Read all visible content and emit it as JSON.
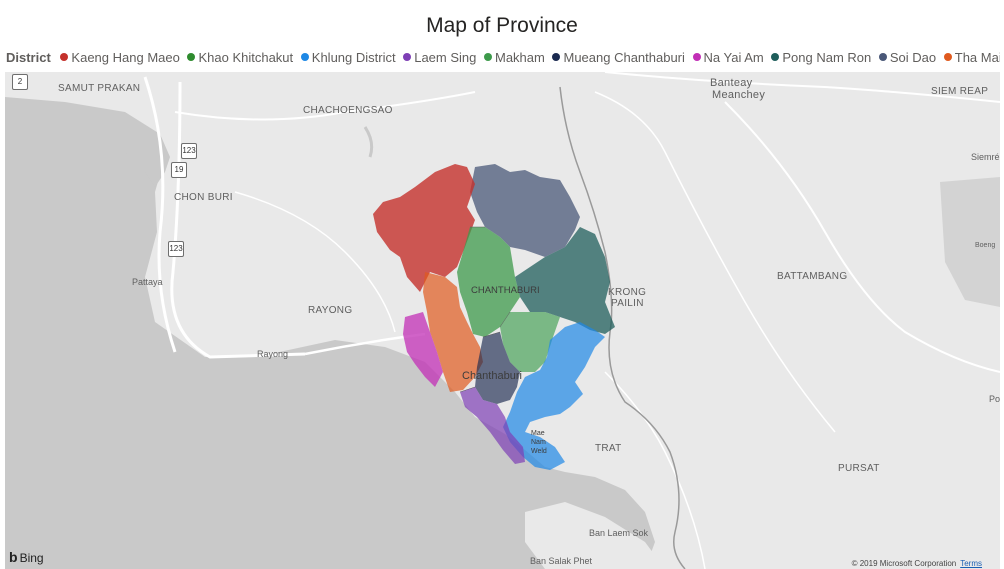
{
  "title": "Map of Province",
  "legend": {
    "title": "District",
    "items": [
      {
        "label": "Kaeng Hang Maeo",
        "color": "#c4312c"
      },
      {
        "label": "Khao Khitchakut",
        "color": "#2e8b2e"
      },
      {
        "label": "Khlung District",
        "color": "#1e88e5"
      },
      {
        "label": "Laem Sing",
        "color": "#7e3fb5"
      },
      {
        "label": "Makham",
        "color": "#3d9a4b"
      },
      {
        "label": "Mueang Chanthaburi",
        "color": "#1b2a50"
      },
      {
        "label": "Na Yai Am",
        "color": "#c22fb6"
      },
      {
        "label": "Pong Nam Ron",
        "color": "#1f5e5b"
      },
      {
        "label": "Soi Dao",
        "color": "#4a5878"
      },
      {
        "label": "Tha Mai",
        "color": "#e05a1e"
      }
    ]
  },
  "places": {
    "samut_prakan": "SAMUT PRAKAN",
    "chachoengsao": "CHACHOENGSAO",
    "banteay": "Banteay",
    "meanchey": "Meanchey",
    "siem_reap": "SIEM REAP",
    "siemre": "Siemré",
    "chon_buri": "CHON BURI",
    "boeng": "Boeng",
    "pattaya": "Pattaya",
    "rayong_prov": "RAYONG",
    "krong": "KRONG",
    "pailin": "PAILIN",
    "battambang": "BATTAMBANG",
    "rayong_city": "Rayong",
    "chanthaburi_prov": "CHANTHABURI",
    "chanthaburi_city": "Chanthaburi",
    "po": "Po",
    "mae": "Mae",
    "nam": "Nam",
    "weld": "Weld",
    "trat": "TRAT",
    "pursat": "PURSAT",
    "ban_laem_sok": "Ban Laem Sok",
    "ban_salak_phet": "Ban Salak Phet"
  },
  "shields": [
    "2",
    "123",
    "19",
    "123"
  ],
  "footer": {
    "bing": "Bing",
    "copyright": "© 2019 Microsoft Corporation",
    "terms": "Terms"
  }
}
